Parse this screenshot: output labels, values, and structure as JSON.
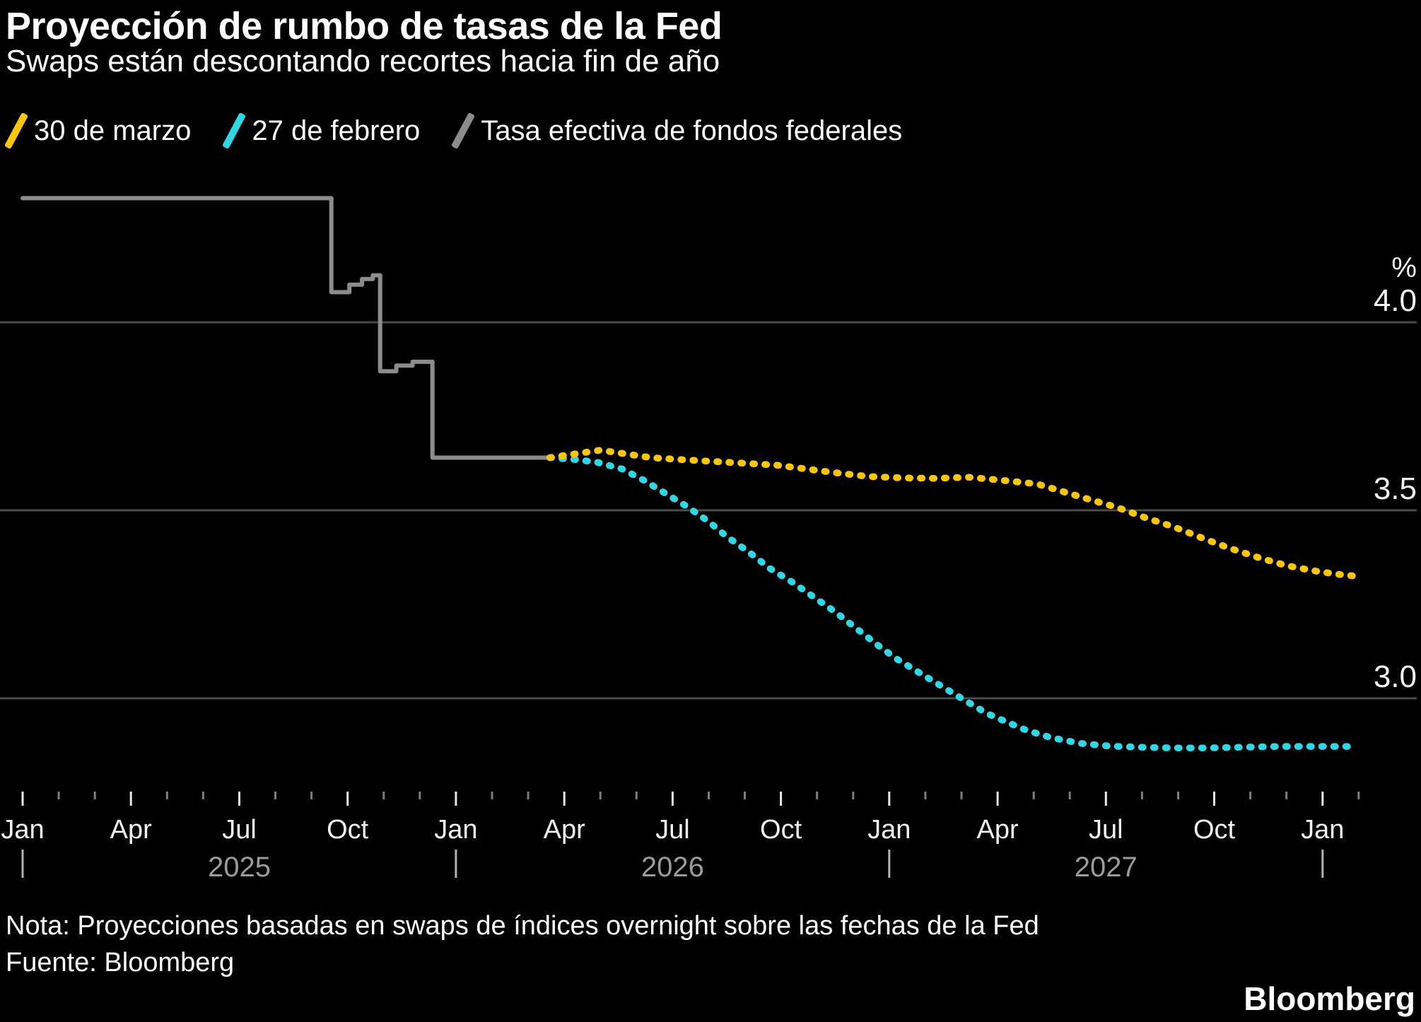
{
  "header": {
    "title": "Proyección de rumbo de tasas de la Fed",
    "subtitle": "Swaps están descontando recortes hacia fin de año"
  },
  "legend": {
    "items": [
      {
        "label": "30 de marzo",
        "color": "#FBC60A"
      },
      {
        "label": "27 de febrero",
        "color": "#2FD7E4"
      },
      {
        "label": "Tasa efectiva de fondos federales",
        "color": "#8C8C8C"
      }
    ]
  },
  "footer": {
    "note": "Nota: Proyecciones basadas en swaps de índices overnight sobre las fechas de la Fed",
    "source": "Fuente: Bloomberg",
    "brand": "Bloomberg"
  },
  "chart_data": {
    "type": "line",
    "title": "Proyección de rumbo de tasas de la Fed",
    "subtitle": "Swaps están descontando recortes hacia fin de año",
    "x_unit": "months since Jan 2025",
    "x_range_months": [
      0,
      37
    ],
    "y_axis_unit": "%",
    "ylim": [
      2.75,
      4.45
    ],
    "grid": "horizontal-only",
    "legend_position": "top",
    "yticks": [
      {
        "v": 4.0,
        "label": "4.0"
      },
      {
        "v": 3.5,
        "label": "3.5"
      },
      {
        "v": 3.0,
        "label": "3.0"
      }
    ],
    "x_axis": {
      "minor_tick_every_month": true,
      "minor_tick_count": 38,
      "quarter_labels": [
        {
          "m": 0,
          "label": "Jan"
        },
        {
          "m": 3,
          "label": "Apr"
        },
        {
          "m": 6,
          "label": "Jul"
        },
        {
          "m": 9,
          "label": "Oct"
        },
        {
          "m": 12,
          "label": "Jan"
        },
        {
          "m": 15,
          "label": "Apr"
        },
        {
          "m": 18,
          "label": "Jul"
        },
        {
          "m": 21,
          "label": "Oct"
        },
        {
          "m": 24,
          "label": "Jan"
        },
        {
          "m": 27,
          "label": "Apr"
        },
        {
          "m": 30,
          "label": "Jul"
        },
        {
          "m": 33,
          "label": "Oct"
        },
        {
          "m": 36,
          "label": "Jan"
        }
      ],
      "year_marks": [
        0,
        12,
        24,
        36
      ],
      "year_labels": [
        {
          "m": 6,
          "label": "2025"
        },
        {
          "m": 18,
          "label": "2026"
        },
        {
          "m": 30,
          "label": "2027"
        }
      ]
    },
    "colors": {
      "grid": "#4A4A4A",
      "tick_major": "#E8E8E8",
      "tick_minor": "#7D7D7D",
      "year_tick": "#B3B3B3",
      "background": "#000000"
    },
    "series": [
      {
        "name": "30 de marzo",
        "color": "#FBC60A",
        "style": "dotted",
        "points": [
          [
            14.6,
            3.64
          ],
          [
            15.3,
            3.65
          ],
          [
            16.0,
            3.66
          ],
          [
            16.7,
            3.65
          ],
          [
            17.4,
            3.64
          ],
          [
            18.2,
            3.635
          ],
          [
            19.1,
            3.63
          ],
          [
            20.0,
            3.625
          ],
          [
            20.9,
            3.62
          ],
          [
            21.7,
            3.61
          ],
          [
            22.5,
            3.6
          ],
          [
            23.4,
            3.59
          ],
          [
            24.4,
            3.586
          ],
          [
            25.3,
            3.585
          ],
          [
            26.2,
            3.588
          ],
          [
            27.1,
            3.58
          ],
          [
            28.1,
            3.57
          ],
          [
            28.8,
            3.55
          ],
          [
            29.5,
            3.53
          ],
          [
            30.3,
            3.508
          ],
          [
            31.1,
            3.48
          ],
          [
            31.9,
            3.455
          ],
          [
            32.7,
            3.425
          ],
          [
            33.4,
            3.4
          ],
          [
            34.2,
            3.375
          ],
          [
            35.0,
            3.353
          ],
          [
            35.7,
            3.34
          ],
          [
            36.4,
            3.33
          ],
          [
            36.9,
            3.325
          ]
        ]
      },
      {
        "name": "27 de febrero",
        "color": "#2FD7E4",
        "style": "dotted",
        "points": [
          [
            14.6,
            3.64
          ],
          [
            15.3,
            3.635
          ],
          [
            15.9,
            3.628
          ],
          [
            16.6,
            3.61
          ],
          [
            17.2,
            3.58
          ],
          [
            17.8,
            3.545
          ],
          [
            18.4,
            3.51
          ],
          [
            19.0,
            3.47
          ],
          [
            19.5,
            3.43
          ],
          [
            20.1,
            3.39
          ],
          [
            20.7,
            3.345
          ],
          [
            21.3,
            3.31
          ],
          [
            21.9,
            3.27
          ],
          [
            22.5,
            3.23
          ],
          [
            23.1,
            3.185
          ],
          [
            23.7,
            3.14
          ],
          [
            24.2,
            3.105
          ],
          [
            24.8,
            3.07
          ],
          [
            25.4,
            3.035
          ],
          [
            26.0,
            3.0
          ],
          [
            26.7,
            2.96
          ],
          [
            27.3,
            2.935
          ],
          [
            27.8,
            2.915
          ],
          [
            28.5,
            2.895
          ],
          [
            29.3,
            2.88
          ],
          [
            30.1,
            2.873
          ],
          [
            30.9,
            2.87
          ],
          [
            31.9,
            2.868
          ],
          [
            32.8,
            2.868
          ],
          [
            33.8,
            2.87
          ],
          [
            34.8,
            2.872
          ],
          [
            35.8,
            2.872
          ],
          [
            36.9,
            2.872
          ]
        ]
      },
      {
        "name": "Tasa efectiva de fondos federales",
        "color": "#8C8C8C",
        "style": "solid",
        "points": [
          [
            0.0,
            4.33
          ],
          [
            8.55,
            4.33
          ],
          [
            8.55,
            4.08
          ],
          [
            9.05,
            4.08
          ],
          [
            9.05,
            4.1
          ],
          [
            9.4,
            4.1
          ],
          [
            9.4,
            4.115
          ],
          [
            9.7,
            4.115
          ],
          [
            9.7,
            4.125
          ],
          [
            9.9,
            4.125
          ],
          [
            9.9,
            3.87
          ],
          [
            10.35,
            3.87
          ],
          [
            10.35,
            3.885
          ],
          [
            10.8,
            3.885
          ],
          [
            10.8,
            3.895
          ],
          [
            11.35,
            3.895
          ],
          [
            11.35,
            3.64
          ],
          [
            14.6,
            3.64
          ]
        ]
      }
    ]
  }
}
